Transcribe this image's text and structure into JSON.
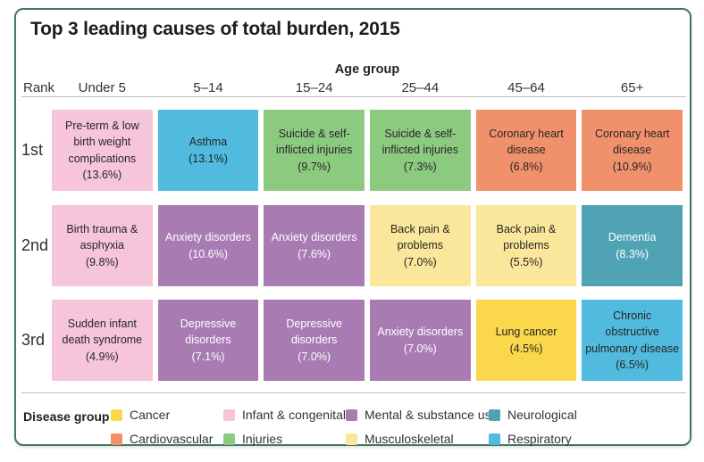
{
  "title": "Top 3 leading causes of total burden, 2015",
  "header": {
    "age_group_label": "Age group",
    "rank_label": "Rank"
  },
  "legend_title": "Disease group",
  "colors": {
    "card_border": "#3F7A5E",
    "divider": "#BDBDBD",
    "text_dark": "#262626",
    "text_light": "#FFFFFF"
  },
  "chart_data": {
    "type": "table",
    "title": "Top 3 leading causes of total burden, 2015",
    "x_header": "Age group",
    "columns": [
      "Under 5",
      "5–14",
      "15–24",
      "25–44",
      "45–64",
      "65+"
    ],
    "rows": [
      {
        "rank": "1st",
        "cells": [
          {
            "cause": "Pre-term & low birth weight complications",
            "value": "(13.6%)",
            "group": "Infant & congenital",
            "bg": "#F6C5DB",
            "fg": "#262626"
          },
          {
            "cause": "Asthma",
            "value": "(13.1%)",
            "group": "Respiratory",
            "bg": "#50BADF",
            "fg": "#262626"
          },
          {
            "cause": "Suicide & self-inflicted injuries",
            "value": "(9.7%)",
            "group": "Injuries",
            "bg": "#8CCA80",
            "fg": "#262626"
          },
          {
            "cause": "Suicide & self-inflicted injuries",
            "value": "(7.3%)",
            "group": "Injuries",
            "bg": "#8CCA80",
            "fg": "#262626"
          },
          {
            "cause": "Coronary heart disease",
            "value": "(6.8%)",
            "group": "Cardiovascular",
            "bg": "#F0916C",
            "fg": "#262626"
          },
          {
            "cause": "Coronary heart disease",
            "value": "(10.9%)",
            "group": "Cardiovascular",
            "bg": "#F0916C",
            "fg": "#262626"
          }
        ]
      },
      {
        "rank": "2nd",
        "cells": [
          {
            "cause": "Birth trauma & asphyxia",
            "value": "(9.8%)",
            "group": "Infant & congenital",
            "bg": "#F6C5DB",
            "fg": "#262626"
          },
          {
            "cause": "Anxiety disorders",
            "value": "(10.6%)",
            "group": "Mental & substance use",
            "bg": "#A87CB2",
            "fg": "#FFFFFF"
          },
          {
            "cause": "Anxiety disorders",
            "value": "(7.6%)",
            "group": "Mental & substance use",
            "bg": "#A87CB2",
            "fg": "#FFFFFF"
          },
          {
            "cause": "Back pain & problems",
            "value": "(7.0%)",
            "group": "Musculoskeletal",
            "bg": "#FBE79B",
            "fg": "#262626"
          },
          {
            "cause": "Back pain & problems",
            "value": "(5.5%)",
            "group": "Musculoskeletal",
            "bg": "#FBE79B",
            "fg": "#262626"
          },
          {
            "cause": "Dementia",
            "value": "(8.3%)",
            "group": "Neurological",
            "bg": "#4FA3B5",
            "fg": "#FFFFFF"
          }
        ]
      },
      {
        "rank": "3rd",
        "cells": [
          {
            "cause": "Sudden infant death syndrome",
            "value": "(4.9%)",
            "group": "Infant & congenital",
            "bg": "#F6C5DB",
            "fg": "#262626"
          },
          {
            "cause": "Depressive disorders",
            "value": "(7.1%)",
            "group": "Mental & substance use",
            "bg": "#A87CB2",
            "fg": "#FFFFFF"
          },
          {
            "cause": "Depressive disorders",
            "value": "(7.0%)",
            "group": "Mental & substance use",
            "bg": "#A87CB2",
            "fg": "#FFFFFF"
          },
          {
            "cause": "Anxiety disorders",
            "value": "(7.0%)",
            "group": "Mental & substance use",
            "bg": "#A87CB2",
            "fg": "#FFFFFF"
          },
          {
            "cause": "Lung cancer",
            "value": "(4.5%)",
            "group": "Cancer",
            "bg": "#FBD74B",
            "fg": "#262626"
          },
          {
            "cause": "Chronic obstructive pulmonary disease",
            "value": "(6.5%)",
            "group": "Respiratory",
            "bg": "#50BADF",
            "fg": "#262626"
          }
        ]
      }
    ],
    "legend": [
      {
        "label": "Cancer",
        "color": "#FBD74B"
      },
      {
        "label": "Cardiovascular",
        "color": "#F0916C"
      },
      {
        "label": "Infant & congenital",
        "color": "#F6C5DB"
      },
      {
        "label": "Injuries",
        "color": "#8CCA80"
      },
      {
        "label": "Mental & substance use",
        "color": "#A87CB2"
      },
      {
        "label": "Musculoskeletal",
        "color": "#FBE79B"
      },
      {
        "label": "Neurological",
        "color": "#4FA3B5"
      },
      {
        "label": "Respiratory",
        "color": "#50BADF"
      }
    ],
    "legend_position": "bottom"
  }
}
